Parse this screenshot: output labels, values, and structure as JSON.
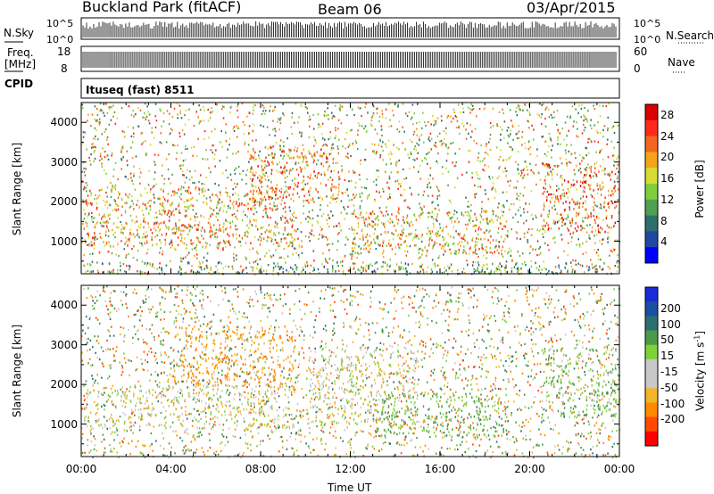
{
  "header": {
    "station": "Buckland Park (fitACF)",
    "beam": "Beam 06",
    "date": "03/Apr/2015"
  },
  "summary_panels": {
    "nsky_label": "N.Sky",
    "nsearch_label": "N.Search",
    "noise_ticks": [
      "10^5",
      "10^0"
    ],
    "freq_label_1": "Freq.",
    "freq_label_2": "[MHz]",
    "freq_ticks": [
      "18",
      "8"
    ],
    "nave_label": "Nave",
    "nave_ticks": [
      "60",
      "0"
    ],
    "cpid_label": "CPID",
    "cpid_text": "Ituseq (fast) 8511"
  },
  "colors": {
    "power_scale": [
      "#0000ff",
      "#1f47a3",
      "#2e6e6e",
      "#4fa052",
      "#7fcf3c",
      "#d6dd32",
      "#f6a31c",
      "#f2661f",
      "#ff2a1a",
      "#d80000"
    ],
    "velocity_scale": [
      "#ff0000",
      "#ff4a00",
      "#ff8a00",
      "#f2b429",
      "#c8c8c8",
      "#c8c8c8",
      "#7fd13a",
      "#4a9a4a",
      "#2c6f6f",
      "#1b4fa2",
      "#1a2ad8"
    ]
  },
  "chart_data": [
    {
      "type": "heatmap",
      "name": "power",
      "ylabel": "Slant Range [km]",
      "xlabel": "Time UT",
      "x_ticks": [
        "00:00",
        "04:00",
        "08:00",
        "12:00",
        "16:00",
        "20:00",
        "00:00"
      ],
      "x_range_hours": [
        0,
        24
      ],
      "y_ticks": [
        1000,
        2000,
        3000,
        4000
      ],
      "ylim": [
        180,
        4500
      ],
      "colorbar_label": "Power [dB]",
      "colorbar_ticks": [
        4,
        8,
        12,
        16,
        20,
        24,
        28
      ],
      "colorbar_range": [
        0,
        30
      ],
      "features": [
        {
          "t": [
            0,
            9.5
          ],
          "r": [
            900,
            2400
          ],
          "peak_db": 20
        },
        {
          "t": [
            7.5,
            11.5
          ],
          "r": [
            2000,
            3400
          ],
          "peak_db": 22
        },
        {
          "t": [
            12,
            19
          ],
          "r": [
            700,
            1800
          ],
          "peak_db": 18
        },
        {
          "t": [
            20.5,
            24
          ],
          "r": [
            1200,
            3000
          ],
          "peak_db": 24
        },
        {
          "t": [
            0,
            24
          ],
          "r": [
            200,
            500
          ],
          "peak_db": 10
        }
      ]
    },
    {
      "type": "heatmap",
      "name": "velocity",
      "ylabel": "Slant Range [km]",
      "xlabel": "Time UT",
      "x_ticks": [
        "00:00",
        "04:00",
        "08:00",
        "12:00",
        "16:00",
        "20:00",
        "00:00"
      ],
      "x_range_hours": [
        0,
        24
      ],
      "y_ticks": [
        1000,
        2000,
        3000,
        4000
      ],
      "ylim": [
        180,
        4500
      ],
      "colorbar_label": "Velocity [m s^-1]",
      "colorbar_ticks": [
        "200",
        "100",
        "50",
        "15",
        "-15",
        "-50",
        "-100",
        "-200"
      ],
      "colorbar_range": [
        -250,
        250
      ],
      "features": [
        {
          "t": [
            0,
            9.5
          ],
          "r": [
            900,
            2000
          ],
          "vel": 0
        },
        {
          "t": [
            4,
            9.5
          ],
          "r": [
            2000,
            3500
          ],
          "vel": -60
        },
        {
          "t": [
            10,
            15
          ],
          "r": [
            1000,
            3000
          ],
          "vel": 0
        },
        {
          "t": [
            13,
            19
          ],
          "r": [
            700,
            1800
          ],
          "vel": 60
        },
        {
          "t": [
            20.5,
            24
          ],
          "r": [
            1200,
            3000
          ],
          "vel": 40
        }
      ]
    }
  ]
}
